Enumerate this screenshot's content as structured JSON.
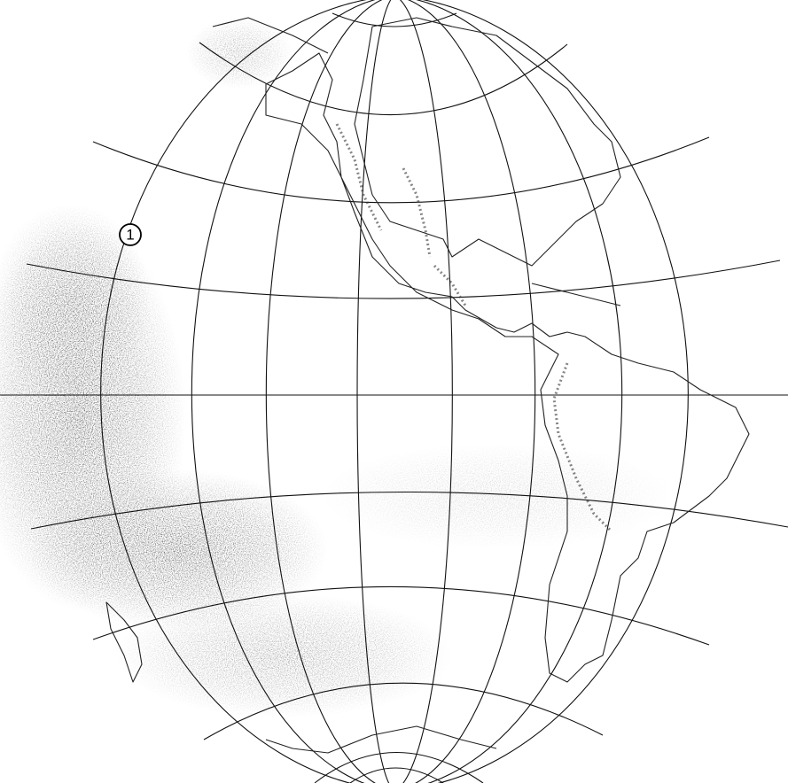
{
  "annotation": {
    "label": "1"
  }
}
